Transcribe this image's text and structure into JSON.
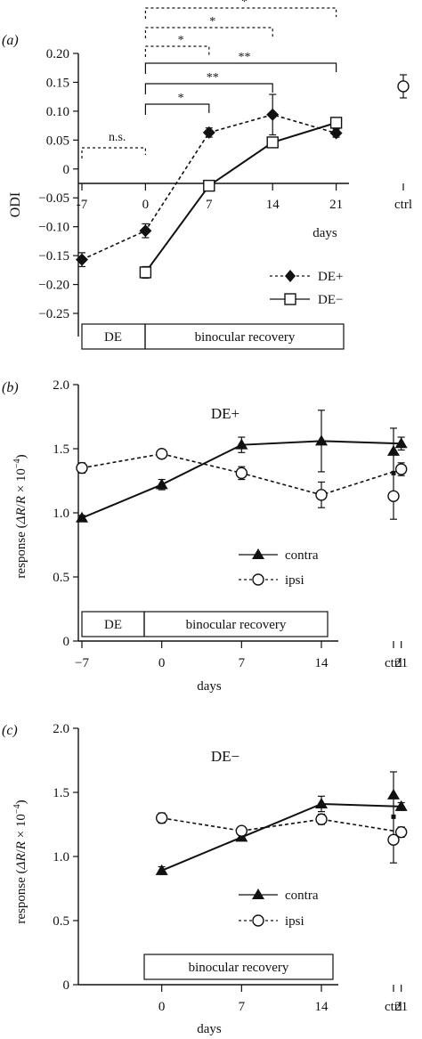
{
  "chart_data": [
    {
      "type": "line",
      "panel_label": "(a)",
      "ylabel": "ODI",
      "xlabel": "days",
      "ylim": [
        -0.25,
        0.2
      ],
      "yticks": [
        "0.20",
        "0.15",
        "0.10",
        "0.05",
        "0",
        "−0.05",
        "−0.10",
        "−0.15",
        "−0.20",
        "−0.25"
      ],
      "ytick_values": [
        0.2,
        0.15,
        0.1,
        0.05,
        0,
        -0.05,
        -0.1,
        -0.15,
        -0.2,
        -0.25
      ],
      "xticks": [
        "-7",
        "0",
        "7",
        "14",
        "21"
      ],
      "xtick_values": [
        -7,
        0,
        7,
        14,
        21
      ],
      "ctrl_label": "ctrl",
      "series": [
        {
          "name": "DE+",
          "marker": "diamond",
          "line": "dashed",
          "x": [
            -7,
            0,
            7,
            14,
            21
          ],
          "y": [
            -0.157,
            -0.107,
            0.063,
            0.094,
            0.062
          ],
          "err": [
            0.012,
            0.012,
            0.008,
            0.035,
            0.007
          ]
        },
        {
          "name": "DE−",
          "marker": "open-square",
          "line": "solid",
          "x": [
            0,
            7,
            14,
            21
          ],
          "y": [
            -0.179,
            -0.029,
            0.046,
            0.08
          ],
          "err": [
            0.01,
            0.007,
            0.006,
            0.006
          ]
        }
      ],
      "ctrl": {
        "marker": "open-circle",
        "y": 0.143,
        "err": 0.02
      },
      "significance": [
        {
          "label": "n.s.",
          "from": -7,
          "to": 0,
          "style": "dashed"
        },
        {
          "label": "*",
          "from": 0,
          "to": 7,
          "style": "solid"
        },
        {
          "label": "**",
          "from": 0,
          "to": 14,
          "style": "solid"
        },
        {
          "label": "**",
          "from": 0,
          "to": 21,
          "style": "solid"
        },
        {
          "label": "*",
          "from": 0,
          "to": 7,
          "style": "dashed"
        },
        {
          "label": "*",
          "from": 0,
          "to": 14,
          "style": "dashed"
        },
        {
          "label": "*",
          "from": 0,
          "to": 21,
          "style": "dashed"
        }
      ],
      "bar_labels": [
        "DE",
        "binocular recovery"
      ]
    },
    {
      "type": "line",
      "panel_label": "(b)",
      "title": "DE+",
      "ylabel_prefix": "response (",
      "ylabel_dr": "ΔR",
      "ylabel_mid": "/",
      "ylabel_r": "R",
      "ylabel_times": " × 10",
      "ylabel_exp": "−4",
      "ylabel_suffix": ")",
      "xlabel": "days",
      "ylim": [
        0,
        2.0
      ],
      "yticks": [
        "2.0",
        "1.5",
        "1.0",
        "0.5",
        "0"
      ],
      "ytick_values": [
        2.0,
        1.5,
        1.0,
        0.5,
        0
      ],
      "xticks": [
        "−7",
        "0",
        "7",
        "14",
        "21"
      ],
      "xtick_values": [
        -7,
        0,
        7,
        14,
        21
      ],
      "ctrl_label": "ctrl",
      "series": [
        {
          "name": "contra",
          "marker": "filled-triangle",
          "line": "solid",
          "x": [
            -7,
            0,
            7,
            14,
            21
          ],
          "y": [
            0.96,
            1.22,
            1.53,
            1.56,
            1.54
          ],
          "err": [
            0.02,
            0.04,
            0.06,
            0.24,
            0.05
          ]
        },
        {
          "name": "ipsi",
          "marker": "open-circle",
          "line": "dashed",
          "x": [
            -7,
            0,
            7,
            14,
            21
          ],
          "y": [
            1.35,
            1.46,
            1.31,
            1.14,
            1.34
          ],
          "err": [
            0.04,
            0.03,
            0.05,
            0.1,
            0.05
          ]
        }
      ],
      "ctrl": {
        "contra": 1.48,
        "ipsi": 1.13,
        "mid": 1.31,
        "top": 1.66,
        "bottom": 0.95
      },
      "bar_labels": [
        "DE",
        "binocular recovery"
      ]
    },
    {
      "type": "line",
      "panel_label": "(c)",
      "title": "DE−",
      "ylabel_prefix": "response (",
      "ylabel_dr": "ΔR",
      "ylabel_mid": "/",
      "ylabel_r": "R",
      "ylabel_times": " × 10",
      "ylabel_exp": "−4",
      "ylabel_suffix": ")",
      "xlabel": "days",
      "ylim": [
        0,
        2.0
      ],
      "yticks": [
        "2.0",
        "1.5",
        "1.0",
        "0.5",
        "0"
      ],
      "ytick_values": [
        2.0,
        1.5,
        1.0,
        0.5,
        0
      ],
      "xticks": [
        "0",
        "7",
        "14",
        "21"
      ],
      "xtick_values": [
        0,
        7,
        14,
        21
      ],
      "ctrl_label": "ctrl",
      "series": [
        {
          "name": "contra",
          "marker": "filled-triangle",
          "line": "solid",
          "x": [
            0,
            7,
            14,
            21
          ],
          "y": [
            0.89,
            1.15,
            1.41,
            1.39
          ],
          "err": [
            0.03,
            0.02,
            0.06,
            0.03
          ]
        },
        {
          "name": "ipsi",
          "marker": "open-circle",
          "line": "dashed",
          "x": [
            0,
            7,
            14,
            21
          ],
          "y": [
            1.3,
            1.2,
            1.29,
            1.19
          ],
          "err": [
            0.04,
            0.03,
            0.04,
            0.04
          ]
        }
      ],
      "ctrl": {
        "contra": 1.48,
        "ipsi": 1.13,
        "mid": 1.31,
        "top": 1.66,
        "bottom": 0.95
      },
      "bar_labels": [
        "binocular recovery"
      ]
    }
  ]
}
